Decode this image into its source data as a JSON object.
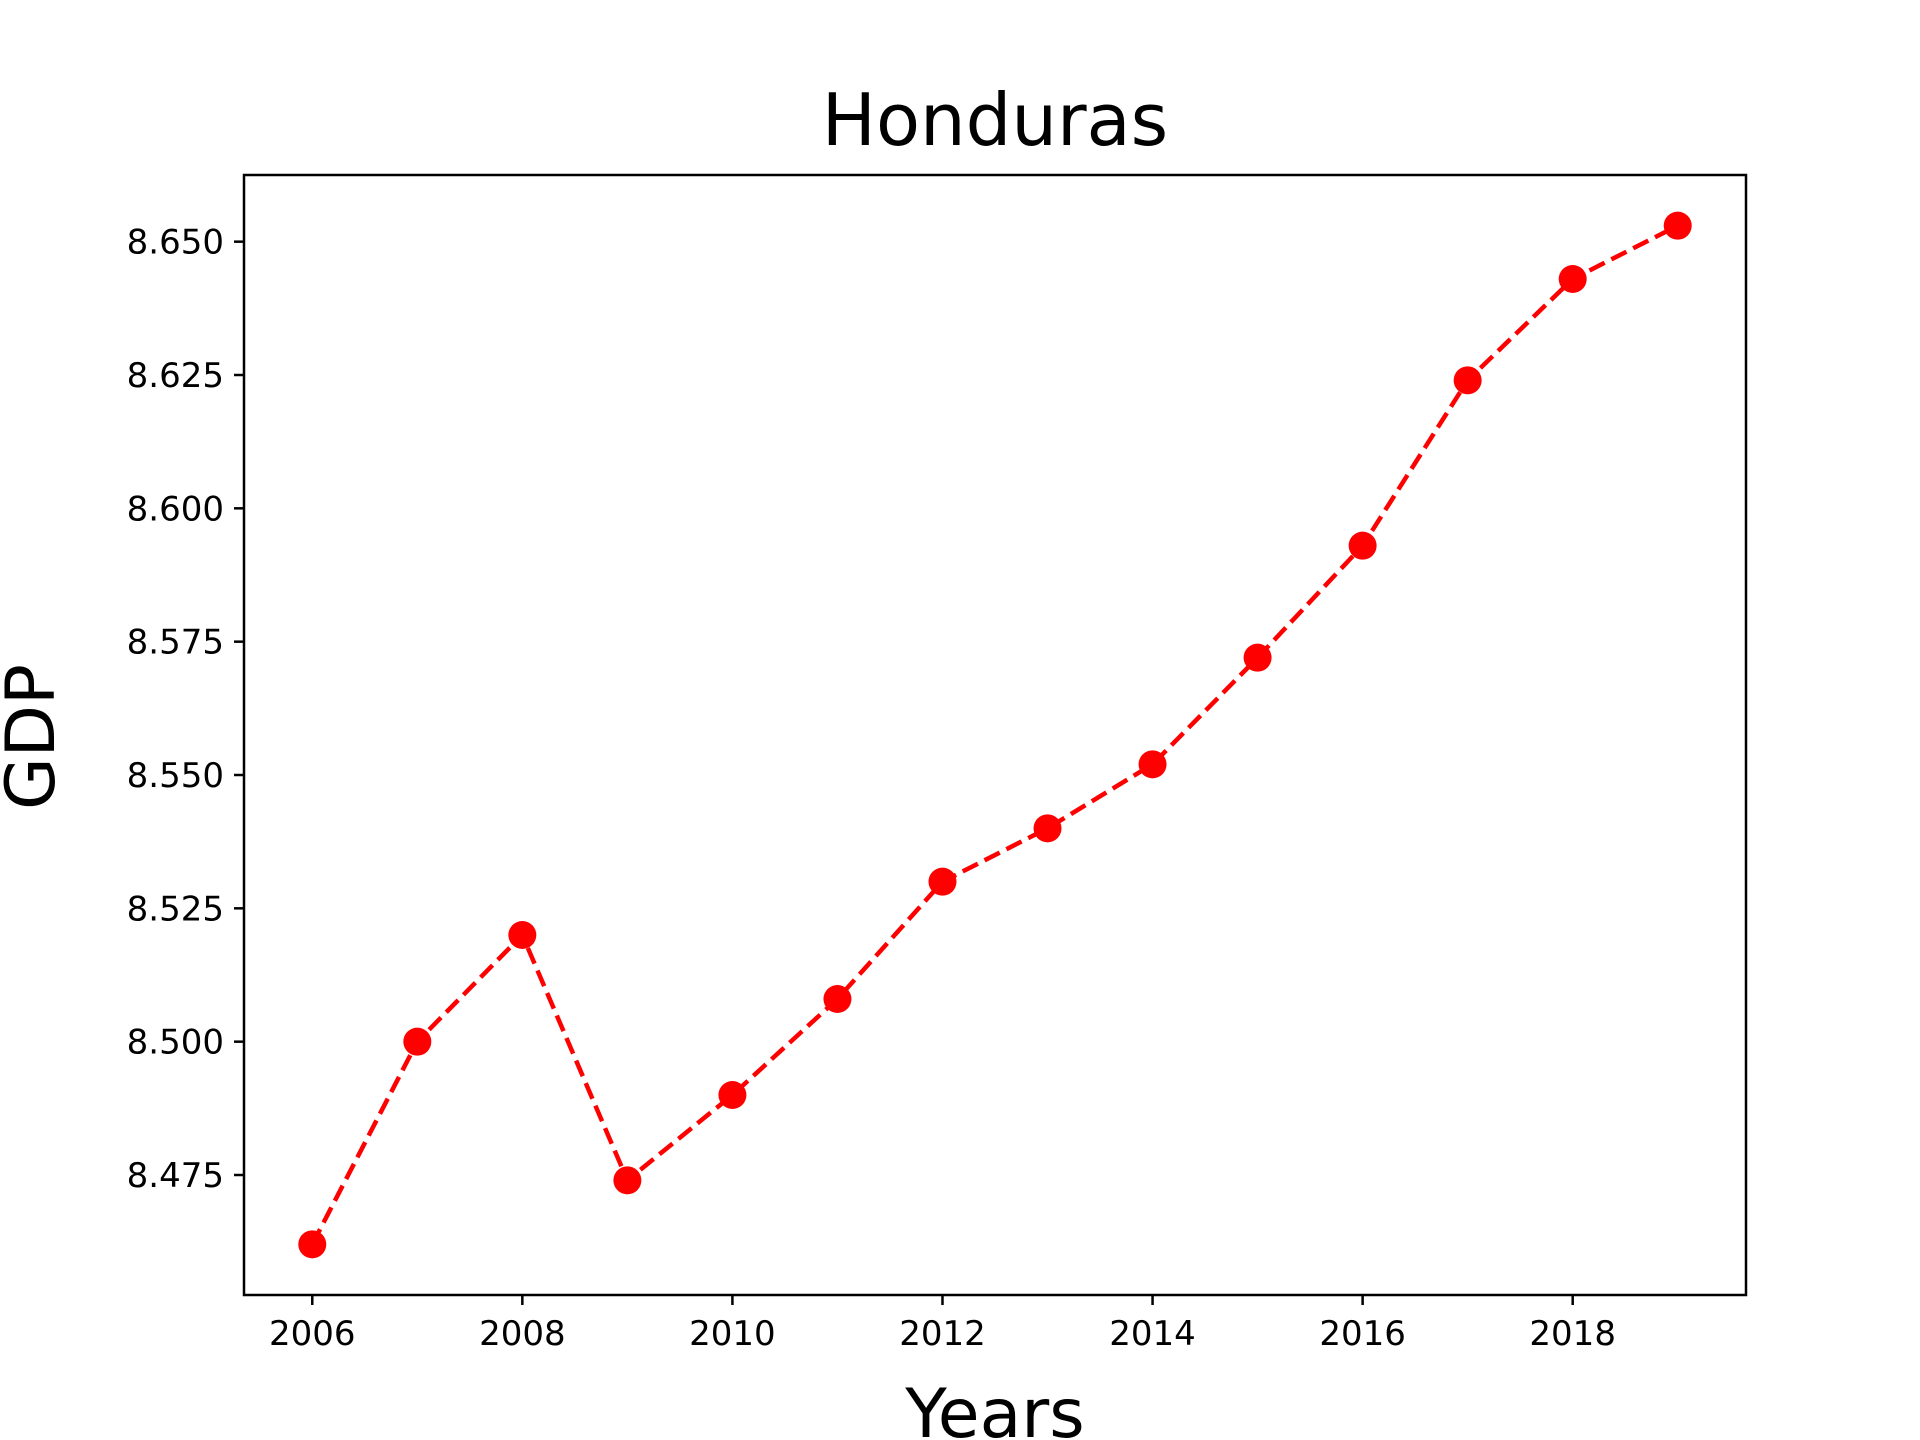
{
  "chart_data": {
    "type": "line",
    "title": "Honduras",
    "xlabel": "Years",
    "ylabel": "GDP",
    "x": [
      2006,
      2007,
      2008,
      2009,
      2010,
      2011,
      2012,
      2013,
      2014,
      2015,
      2016,
      2017,
      2018,
      2019
    ],
    "series": [
      {
        "values": [
          8.462,
          8.5,
          8.52,
          8.474,
          8.49,
          8.508,
          8.53,
          8.54,
          8.552,
          8.572,
          8.593,
          8.624,
          8.643,
          8.653
        ],
        "color": "#ff0000",
        "line_style": "dashed",
        "marker": "circle"
      }
    ],
    "xlim": [
      2005.35,
      2019.65
    ],
    "ylim": [
      8.4525,
      8.6625
    ],
    "xticks": [
      2006,
      2008,
      2010,
      2012,
      2014,
      2016,
      2018
    ],
    "xtick_labels": [
      "2006",
      "2008",
      "2010",
      "2012",
      "2014",
      "2016",
      "2018"
    ],
    "yticks": [
      8.475,
      8.5,
      8.525,
      8.55,
      8.575,
      8.6,
      8.625,
      8.65
    ],
    "ytick_labels": [
      "8.475",
      "8.500",
      "8.525",
      "8.550",
      "8.575",
      "8.600",
      "8.625",
      "8.650"
    ],
    "grid": false,
    "legend": "none"
  }
}
